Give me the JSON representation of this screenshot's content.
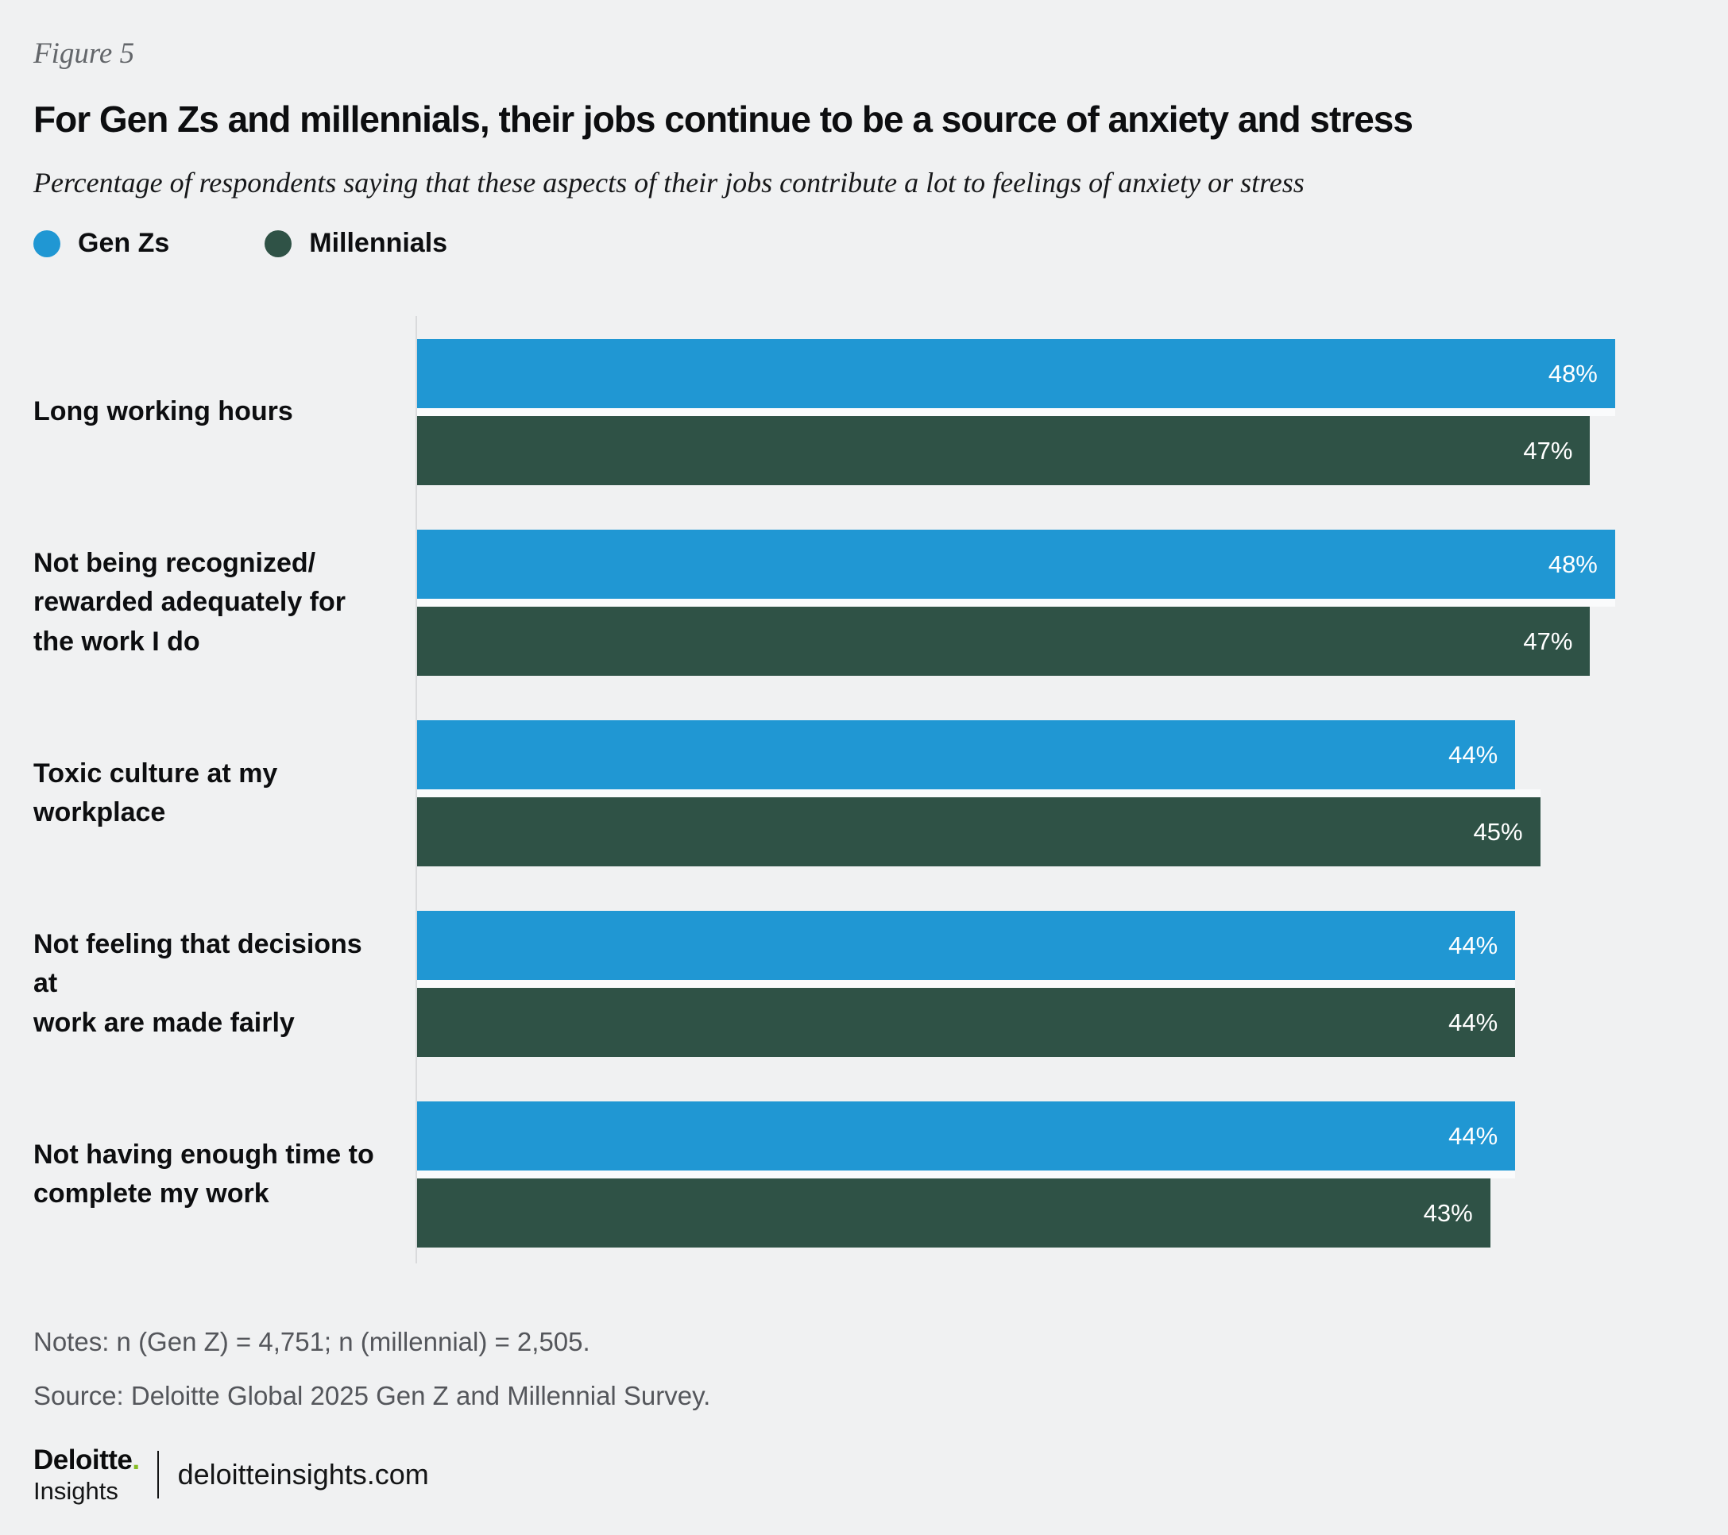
{
  "figure_label": "Figure 5",
  "title": "For Gen Zs and millennials, their jobs continue to be a source of anxiety and stress",
  "subtitle": "Percentage of respondents saying that these aspects of their jobs contribute a lot to feelings of anxiety or stress",
  "legend": [
    {
      "label": "Gen Zs",
      "color": "#2097d3"
    },
    {
      "label": "Millennials",
      "color": "#2f5246"
    }
  ],
  "chart_data": {
    "type": "bar",
    "orientation": "horizontal",
    "title": "For Gen Zs and millennials, their jobs continue to be a source of anxiety and stress",
    "subtitle": "Percentage of respondents saying that these aspects of their jobs contribute a lot to feelings of anxiety or stress",
    "categories": [
      [
        "Long working hours"
      ],
      [
        "Not being recognized/",
        "rewarded adequately for",
        "the work I do"
      ],
      [
        "Toxic culture at my workplace"
      ],
      [
        "Not feeling that decisions at",
        "work are made fairly"
      ],
      [
        "Not having enough time to",
        "complete my work"
      ]
    ],
    "series": [
      {
        "name": "Gen Zs",
        "color": "#2097d3",
        "values": [
          48,
          48,
          44,
          44,
          44
        ]
      },
      {
        "name": "Millennials",
        "color": "#2f5246",
        "values": [
          47,
          47,
          45,
          44,
          43
        ]
      }
    ],
    "value_suffix": "%",
    "axis_max": 52.5,
    "grid": false,
    "legend_position": "top-left",
    "value_labels": "inside-end"
  },
  "notes": "Notes: n (Gen Z) = 4,751; n (millennial) = 2,505.",
  "source": "Source: Deloitte Global 2025 Gen Z and Millennial Survey.",
  "footer": {
    "brand": "Deloitte",
    "brand_dot": ".",
    "brand_sub": "Insights",
    "site": "deloitteinsights.com"
  }
}
